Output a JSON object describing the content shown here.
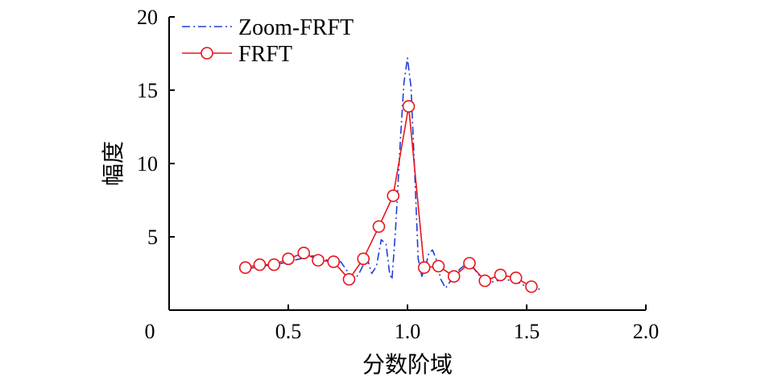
{
  "chart_data": {
    "type": "line",
    "xlabel": "分数阶域",
    "ylabel": "幅度",
    "xlim": [
      0,
      2.0
    ],
    "ylim": [
      0,
      20
    ],
    "x_ticks": [
      "0",
      "0.5",
      "1.0",
      "1.5",
      "2.0"
    ],
    "y_ticks": [
      "5",
      "10",
      "15",
      "20"
    ],
    "grid": false,
    "legend_position": "top-left",
    "series": [
      {
        "name": "Zoom-FRFT",
        "color": "#1f3fd6",
        "style": "dash-dot",
        "x": [
          0.33,
          0.38,
          0.45,
          0.5,
          0.55,
          0.6,
          0.65,
          0.68,
          0.72,
          0.75,
          0.78,
          0.8,
          0.83,
          0.85,
          0.87,
          0.89,
          0.91,
          0.925,
          0.935,
          0.95,
          0.97,
          0.985,
          1.0,
          1.015,
          1.03,
          1.045,
          1.06,
          1.075,
          1.09,
          1.105,
          1.12,
          1.14,
          1.16,
          1.19,
          1.22,
          1.25,
          1.28,
          1.31,
          1.35,
          1.4,
          1.45,
          1.5,
          1.56
        ],
        "y": [
          2.8,
          3.0,
          3.1,
          3.3,
          3.5,
          3.7,
          3.6,
          3.1,
          3.3,
          2.6,
          2.1,
          2.6,
          3.6,
          2.5,
          3.0,
          4.8,
          4.5,
          2.5,
          2.1,
          5.5,
          11.5,
          15.5,
          17.2,
          15.2,
          9.5,
          3.5,
          2.3,
          2.9,
          3.9,
          4.1,
          3.5,
          2.1,
          1.5,
          2.2,
          2.8,
          3.2,
          2.8,
          2.2,
          1.9,
          2.1,
          2.0,
          1.6,
          1.4
        ]
      },
      {
        "name": "FRFT",
        "color": "#e8141c",
        "style": "solid-circle",
        "x": [
          0.32,
          0.38,
          0.44,
          0.5,
          0.565,
          0.625,
          0.69,
          0.755,
          0.815,
          0.88,
          0.94,
          1.005,
          1.07,
          1.13,
          1.195,
          1.26,
          1.325,
          1.39,
          1.455,
          1.52
        ],
        "y": [
          2.9,
          3.1,
          3.1,
          3.5,
          3.9,
          3.4,
          3.3,
          2.1,
          3.5,
          5.7,
          7.8,
          13.9,
          2.9,
          3.0,
          2.3,
          3.2,
          2.0,
          2.4,
          2.2,
          1.6
        ]
      }
    ]
  }
}
